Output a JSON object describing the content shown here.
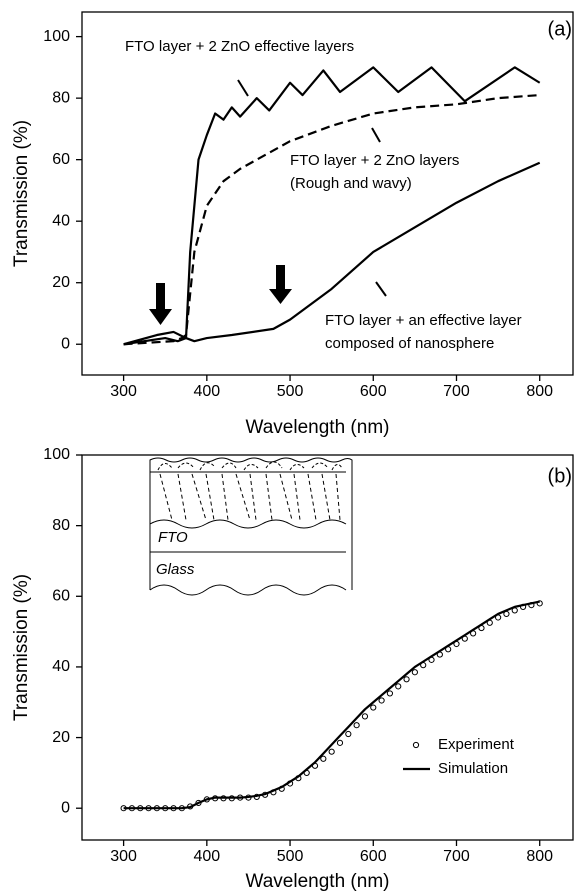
{
  "chart_data": [
    {
      "type": "line",
      "panel_label": "(a)",
      "x_label": "Wavelength (nm)",
      "y_label": "Transmission (%)",
      "xlim": [
        250,
        840
      ],
      "ylim": [
        -10,
        108
      ],
      "xticks": [
        300,
        400,
        500,
        600,
        700,
        800
      ],
      "yticks": [
        0,
        20,
        40,
        60,
        80,
        100
      ],
      "annotations": [
        "FTO layer + 2 ZnO effective layers",
        "FTO layer + 2 ZnO layers",
        "(Rough and wavy)",
        "FTO layer + an effective layer",
        "composed of nanosphere"
      ],
      "series": [
        {
          "color": "#000000",
          "dash": false,
          "x": [
            300,
            350,
            365,
            375,
            380,
            390,
            400,
            410,
            420,
            430,
            440,
            460,
            475,
            500,
            515,
            540,
            560,
            600,
            630,
            670,
            710,
            770,
            800
          ],
          "values": [
            0,
            2,
            1,
            2,
            30,
            60,
            68,
            75,
            73,
            77,
            74,
            80,
            76,
            85,
            81,
            89,
            82,
            90,
            82,
            90,
            79,
            90,
            85
          ]
        },
        {
          "color": "#000000",
          "dash": true,
          "x": [
            300,
            360,
            370,
            375,
            385,
            400,
            420,
            440,
            460,
            480,
            500,
            550,
            600,
            650,
            700,
            750,
            800
          ],
          "values": [
            0,
            1,
            2,
            3,
            30,
            45,
            53,
            57,
            60,
            63,
            66,
            71,
            75,
            77,
            78,
            80,
            81
          ]
        },
        {
          "color": "#000000",
          "dash": false,
          "x": [
            300,
            340,
            360,
            375,
            385,
            400,
            430,
            480,
            500,
            550,
            600,
            650,
            700,
            750,
            800
          ],
          "values": [
            0,
            3,
            4,
            2,
            1,
            2,
            3,
            5,
            8,
            18,
            30,
            38,
            46,
            53,
            59
          ]
        }
      ]
    },
    {
      "type": "line",
      "panel_label": "(b)",
      "x_label": "Wavelength (nm)",
      "y_label": "Transmission (%)",
      "xlim": [
        250,
        840
      ],
      "ylim": [
        -9,
        100
      ],
      "xticks": [
        300,
        400,
        500,
        600,
        700,
        800
      ],
      "yticks": [
        0,
        20,
        40,
        60,
        80,
        100
      ],
      "legend": "lower right",
      "inset_labels": [
        "FTO",
        "Glass"
      ],
      "x": [
        300,
        310,
        320,
        330,
        340,
        350,
        360,
        370,
        380,
        390,
        400,
        410,
        420,
        430,
        440,
        450,
        460,
        470,
        480,
        490,
        500,
        510,
        520,
        530,
        540,
        550,
        560,
        570,
        580,
        590,
        600,
        610,
        620,
        630,
        640,
        650,
        660,
        670,
        680,
        690,
        700,
        710,
        720,
        730,
        740,
        750,
        760,
        770,
        780,
        790,
        800
      ],
      "series": [
        {
          "name": "Experiment",
          "color": "#000000",
          "marker": "circle",
          "values": [
            0,
            0,
            0,
            0,
            0,
            0,
            0,
            0,
            0.5,
            1.5,
            2.5,
            2.8,
            2.8,
            2.8,
            3,
            3,
            3.2,
            3.8,
            4.5,
            5.5,
            7,
            8.5,
            10,
            12,
            14,
            16,
            18.5,
            21,
            23.5,
            26,
            28.5,
            30.5,
            32.5,
            34.5,
            36.5,
            38.5,
            40.5,
            42,
            43.5,
            45,
            46.5,
            48,
            49.5,
            51,
            52.5,
            54,
            55,
            56,
            57,
            57.5,
            58
          ]
        },
        {
          "name": "Simulation",
          "color": "#000000",
          "values": [
            0,
            0,
            0,
            0,
            0,
            0,
            0,
            0,
            0.3,
            1.5,
            2.5,
            3,
            3,
            3,
            3,
            3.2,
            3.5,
            4,
            5,
            6,
            7.5,
            9,
            11,
            13,
            15.5,
            18,
            20.5,
            23,
            25.5,
            28,
            30,
            32,
            34,
            36,
            38,
            40,
            41.5,
            43,
            44.5,
            46,
            47.5,
            49,
            50.5,
            52,
            53.5,
            55,
            56,
            57,
            57.5,
            58,
            58.5
          ]
        }
      ]
    }
  ]
}
